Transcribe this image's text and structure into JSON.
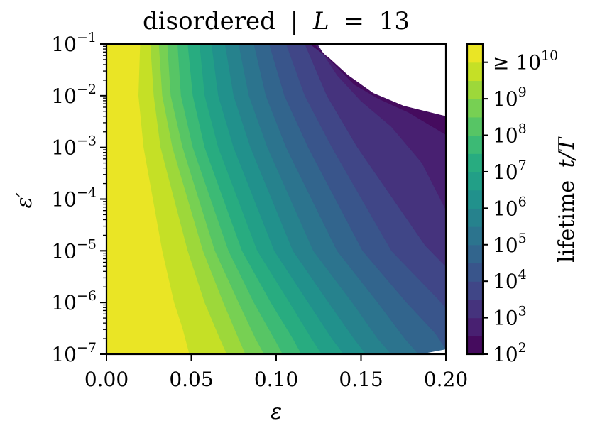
{
  "chart_data": {
    "type": "contourf",
    "title": "disordered | L = 13",
    "title_parts": {
      "word": "disordered",
      "sep": "|",
      "var": "L",
      "eq": "=",
      "val": "13"
    },
    "xlabel": "ε",
    "ylabel": "ε′",
    "x_scale": "linear",
    "y_scale": "log",
    "xlim": [
      0.0,
      0.2
    ],
    "ylim_exponent": [
      -7,
      -1
    ],
    "x_ticks": [
      {
        "value": 0.0,
        "label": "0.00"
      },
      {
        "value": 0.05,
        "label": "0.05"
      },
      {
        "value": 0.1,
        "label": "0.10"
      },
      {
        "value": 0.15,
        "label": "0.15"
      },
      {
        "value": 0.2,
        "label": "0.20"
      }
    ],
    "y_ticks": [
      {
        "exp": -7,
        "base": "10",
        "sup": "−7"
      },
      {
        "exp": -6,
        "base": "10",
        "sup": "−6"
      },
      {
        "exp": -5,
        "base": "10",
        "sup": "−5"
      },
      {
        "exp": -4,
        "base": "10",
        "sup": "−4"
      },
      {
        "exp": -3,
        "base": "10",
        "sup": "−3"
      },
      {
        "exp": -2,
        "base": "10",
        "sup": "−2"
      },
      {
        "exp": -1,
        "base": "10",
        "sup": "−1"
      }
    ],
    "colorbar": {
      "label": "lifetime t/T",
      "label_parts": {
        "word": "lifetime",
        "expr": "t/T"
      },
      "scale": "log10",
      "range_exponent": [
        2,
        10.5
      ],
      "colormap": "viridis",
      "levels": 17,
      "ticks": [
        {
          "exp": 2,
          "prefix": "",
          "base": "10",
          "sup": "2"
        },
        {
          "exp": 3,
          "prefix": "",
          "base": "10",
          "sup": "3"
        },
        {
          "exp": 4,
          "prefix": "",
          "base": "10",
          "sup": "4"
        },
        {
          "exp": 5,
          "prefix": "",
          "base": "10",
          "sup": "5"
        },
        {
          "exp": 6,
          "prefix": "",
          "base": "10",
          "sup": "6"
        },
        {
          "exp": 7,
          "prefix": "",
          "base": "10",
          "sup": "7"
        },
        {
          "exp": 8,
          "prefix": "",
          "base": "10",
          "sup": "8"
        },
        {
          "exp": 9,
          "prefix": "",
          "base": "10",
          "sup": "9"
        },
        {
          "exp": 10,
          "prefix": "≥ ",
          "base": "10",
          "sup": "10"
        }
      ]
    },
    "contour_boundaries_log10_lifetime": [
      {
        "level": 10.0,
        "points": [
          [
            0.02,
            -1
          ],
          [
            0.019,
            -2
          ],
          [
            0.022,
            -3
          ],
          [
            0.033,
            -5
          ],
          [
            0.04,
            -6
          ],
          [
            0.045,
            -6.5
          ],
          [
            0.049,
            -7
          ]
        ]
      },
      {
        "level": 9.5,
        "points": [
          [
            0.026,
            -1
          ],
          [
            0.028,
            -2
          ],
          [
            0.032,
            -3
          ],
          [
            0.048,
            -5
          ],
          [
            0.058,
            -6
          ],
          [
            0.067,
            -6.7
          ],
          [
            0.071,
            -7
          ]
        ]
      },
      {
        "level": 9.0,
        "points": [
          [
            0.031,
            -1
          ],
          [
            0.033,
            -2
          ],
          [
            0.039,
            -3
          ],
          [
            0.057,
            -5
          ],
          [
            0.069,
            -6
          ],
          [
            0.078,
            -6.7
          ],
          [
            0.082,
            -7
          ]
        ]
      },
      {
        "level": 8.5,
        "points": [
          [
            0.036,
            -1
          ],
          [
            0.038,
            -2
          ],
          [
            0.045,
            -3
          ],
          [
            0.064,
            -5
          ],
          [
            0.078,
            -6
          ],
          [
            0.088,
            -6.7
          ],
          [
            0.093,
            -7
          ]
        ]
      },
      {
        "level": 8.0,
        "points": [
          [
            0.042,
            -1
          ],
          [
            0.044,
            -2
          ],
          [
            0.051,
            -3
          ],
          [
            0.072,
            -5
          ],
          [
            0.087,
            -6
          ],
          [
            0.099,
            -6.7
          ],
          [
            0.104,
            -7
          ]
        ]
      },
      {
        "level": 7.5,
        "points": [
          [
            0.048,
            -1
          ],
          [
            0.051,
            -2
          ],
          [
            0.058,
            -3
          ],
          [
            0.08,
            -5
          ],
          [
            0.097,
            -6
          ],
          [
            0.11,
            -6.7
          ],
          [
            0.115,
            -7
          ]
        ]
      },
      {
        "level": 7.0,
        "points": [
          [
            0.055,
            -1
          ],
          [
            0.058,
            -2
          ],
          [
            0.066,
            -3
          ],
          [
            0.089,
            -5
          ],
          [
            0.108,
            -6
          ],
          [
            0.121,
            -6.7
          ],
          [
            0.127,
            -7
          ]
        ]
      },
      {
        "level": 6.5,
        "points": [
          [
            0.062,
            -1
          ],
          [
            0.066,
            -2
          ],
          [
            0.075,
            -3
          ],
          [
            0.099,
            -5
          ],
          [
            0.119,
            -6
          ],
          [
            0.133,
            -6.7
          ],
          [
            0.14,
            -7
          ]
        ]
      },
      {
        "level": 6.0,
        "points": [
          [
            0.07,
            -1
          ],
          [
            0.075,
            -2
          ],
          [
            0.085,
            -3
          ],
          [
            0.11,
            -5
          ],
          [
            0.131,
            -6
          ],
          [
            0.146,
            -6.7
          ],
          [
            0.153,
            -7
          ]
        ]
      },
      {
        "level": 5.5,
        "points": [
          [
            0.078,
            -1
          ],
          [
            0.084,
            -2
          ],
          [
            0.095,
            -3
          ],
          [
            0.122,
            -5
          ],
          [
            0.145,
            -6
          ],
          [
            0.16,
            -6.7
          ],
          [
            0.168,
            -7
          ]
        ]
      },
      {
        "level": 5.0,
        "points": [
          [
            0.087,
            -1
          ],
          [
            0.094,
            -2
          ],
          [
            0.106,
            -3
          ],
          [
            0.136,
            -5
          ],
          [
            0.16,
            -6
          ],
          [
            0.176,
            -6.7
          ],
          [
            0.184,
            -7
          ]
        ]
      },
      {
        "level": 4.5,
        "points": [
          [
            0.096,
            -1
          ],
          [
            0.105,
            -2
          ],
          [
            0.119,
            -3
          ],
          [
            0.151,
            -5
          ],
          [
            0.177,
            -6
          ],
          [
            0.194,
            -6.6
          ],
          [
            0.2,
            -6.9
          ]
        ]
      },
      {
        "level": 4.0,
        "points": [
          [
            0.106,
            -1
          ],
          [
            0.117,
            -2
          ],
          [
            0.133,
            -3
          ],
          [
            0.168,
            -5
          ],
          [
            0.196,
            -5.95
          ],
          [
            0.2,
            -6.1
          ]
        ]
      },
      {
        "level": 3.5,
        "points": [
          [
            0.117,
            -1
          ],
          [
            0.13,
            -2
          ],
          [
            0.148,
            -3
          ],
          [
            0.188,
            -4.9
          ],
          [
            0.2,
            -5.3
          ]
        ]
      },
      {
        "level": 3.0,
        "points": [
          [
            0.124,
            -1
          ],
          [
            0.136,
            -1.6
          ],
          [
            0.15,
            -2.1
          ],
          [
            0.168,
            -2.6
          ],
          [
            0.186,
            -3.3
          ],
          [
            0.2,
            -4.2
          ]
        ]
      },
      {
        "level": 2.5,
        "points": [
          [
            0.122,
            -1
          ],
          [
            0.133,
            -1.35
          ],
          [
            0.146,
            -1.78
          ],
          [
            0.16,
            -2.05
          ],
          [
            0.178,
            -2.32
          ],
          [
            0.2,
            -2.75
          ]
        ]
      },
      {
        "level": 2.0,
        "points": [
          [
            0.12,
            -1
          ],
          [
            0.131,
            -1.27
          ],
          [
            0.142,
            -1.6
          ],
          [
            0.157,
            -1.95
          ],
          [
            0.175,
            -2.2
          ],
          [
            0.2,
            -2.4
          ]
        ]
      }
    ]
  }
}
